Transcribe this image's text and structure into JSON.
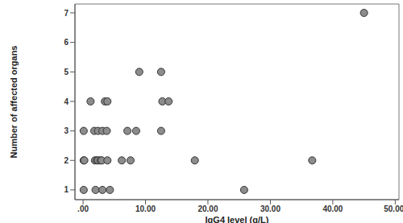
{
  "chart_data": {
    "type": "scatter",
    "x_label": "IgG4 level (g/L)",
    "y_label": "Number of affected organs",
    "x": [
      45.0,
      9.0,
      12.5,
      1.2,
      3.5,
      3.9,
      12.7,
      13.7,
      0.1,
      1.8,
      2.4,
      3.1,
      3.8,
      7.1,
      8.5,
      12.5,
      0.1,
      0.2,
      1.9,
      2.2,
      2.4,
      2.8,
      3.0,
      3.9,
      6.2,
      7.6,
      17.9,
      36.7,
      0.1,
      2.0,
      3.1,
      4.3,
      25.8
    ],
    "values": [
      7,
      5,
      5,
      4,
      4,
      4,
      4,
      4,
      3,
      3,
      3,
      3,
      3,
      3,
      3,
      3,
      2,
      2,
      2,
      2,
      2,
      2,
      2,
      2,
      2,
      2,
      2,
      2,
      1,
      1,
      1,
      1,
      1
    ],
    "color": "#8c8c8c",
    "marker": "circle",
    "xlim": [
      -1.3,
      50.6
    ],
    "xticks": [
      {
        "value": 0,
        "label": ".00"
      },
      {
        "value": 10,
        "label": "10.00"
      },
      {
        "value": 20,
        "label": "20.00"
      },
      {
        "value": 30,
        "label": "30.00"
      },
      {
        "value": 40,
        "label": "40.00"
      },
      {
        "value": 50,
        "label": "50.00"
      }
    ],
    "ylim": [
      0.67,
      7.3
    ],
    "yticks": [
      1,
      2,
      3,
      4,
      5,
      6,
      7
    ],
    "grid": false
  }
}
